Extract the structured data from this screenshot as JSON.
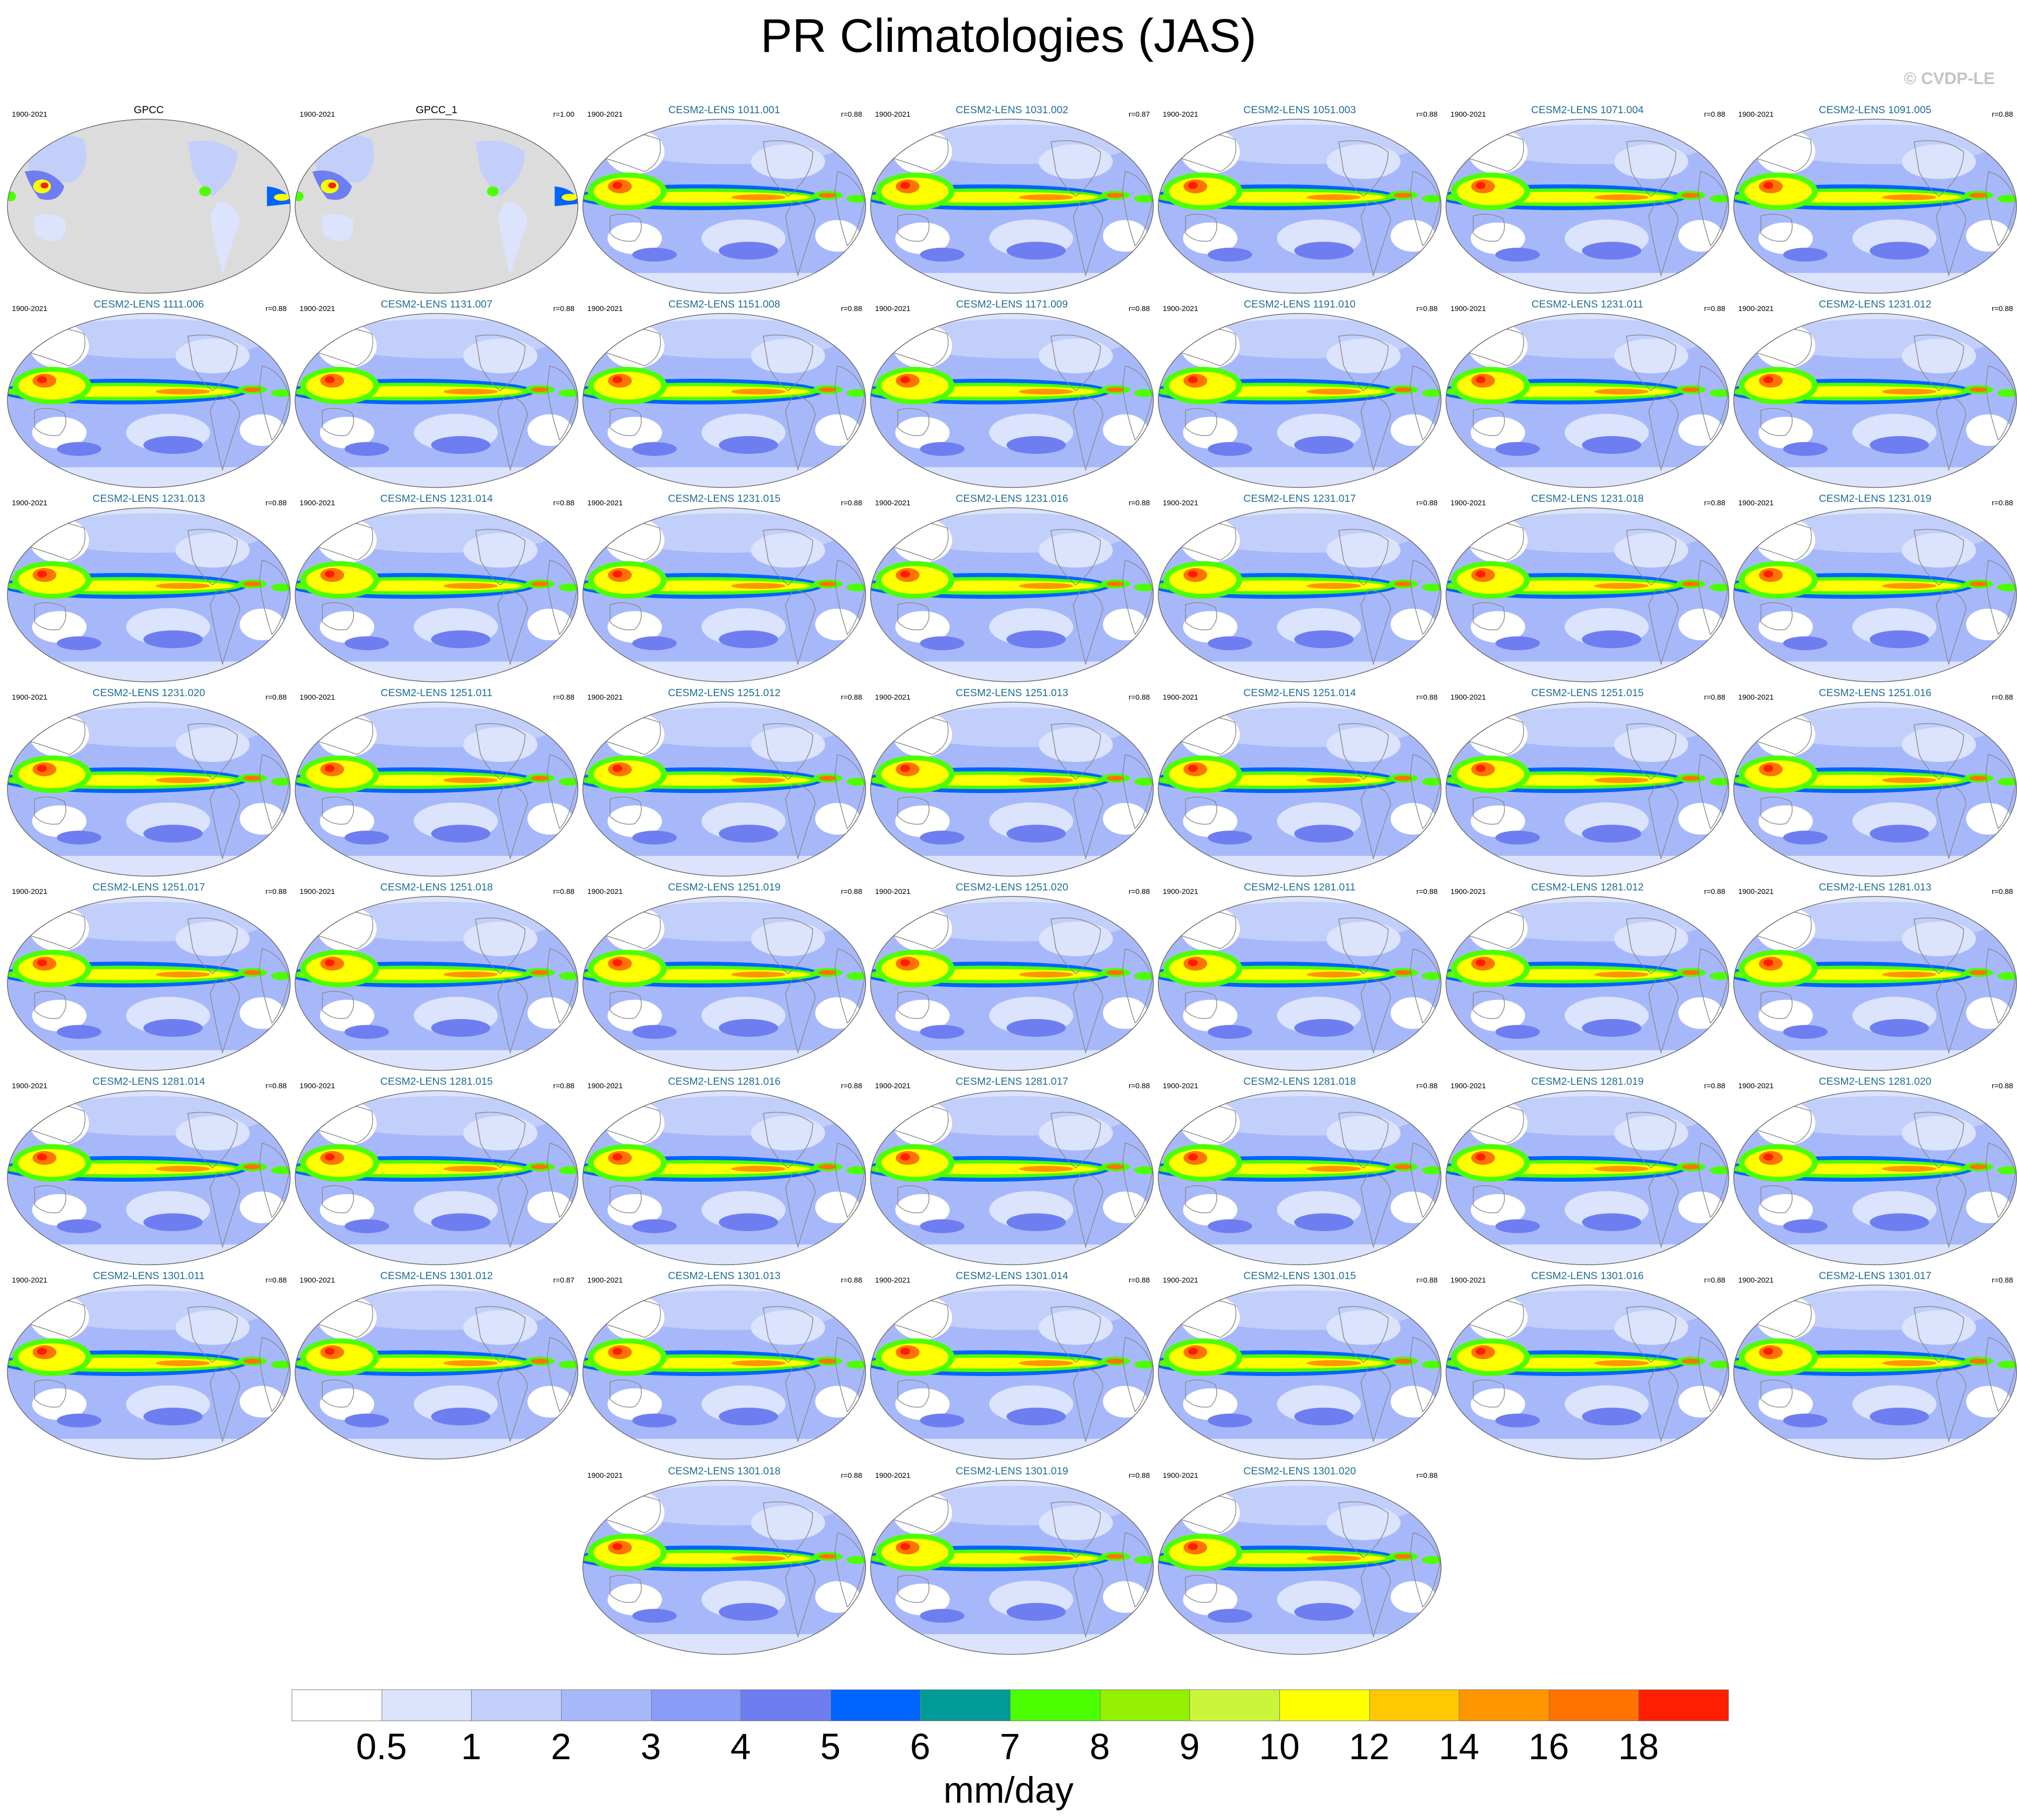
{
  "title": "PR Climatologies (JAS)",
  "watermark": "© CVDP-LE",
  "chart_data": {
    "type": "heatmap",
    "projection": "Robinson (Pacific-centered global maps)",
    "variable": "PR",
    "season": "JAS",
    "units": "mm/day",
    "colorbar": {
      "levels": [
        "0.5",
        "1",
        "2",
        "3",
        "4",
        "5",
        "6",
        "7",
        "8",
        "9",
        "10",
        "12",
        "14",
        "16",
        "18"
      ],
      "colors": [
        "#ffffff",
        "#dbe3fd",
        "#c2cffb",
        "#a7b8fa",
        "#8a9cf6",
        "#6e7ef1",
        "#0064ff",
        "#009a98",
        "#4bff00",
        "#92f000",
        "#cbf53b",
        "#ffff00",
        "#ffc800",
        "#ff9600",
        "#ff7300",
        "#ff1e00"
      ]
    },
    "panels": [
      {
        "title": "GPCC",
        "period": "1900-2021",
        "r": "",
        "kind": "obs"
      },
      {
        "title": "GPCC_1",
        "period": "1900-2021",
        "r": "r=1.00",
        "kind": "obs"
      },
      {
        "title": "CESM2-LENS 1011.001",
        "period": "1900-2021",
        "r": "r=0.88",
        "kind": "model"
      },
      {
        "title": "CESM2-LENS 1031.002",
        "period": "1900-2021",
        "r": "r=0.87",
        "kind": "model"
      },
      {
        "title": "CESM2-LENS 1051.003",
        "period": "1900-2021",
        "r": "r=0.88",
        "kind": "model"
      },
      {
        "title": "CESM2-LENS 1071.004",
        "period": "1900-2021",
        "r": "r=0.88",
        "kind": "model"
      },
      {
        "title": "CESM2-LENS 1091.005",
        "period": "1900-2021",
        "r": "r=0.88",
        "kind": "model"
      },
      {
        "title": "CESM2-LENS 1111.006",
        "period": "1900-2021",
        "r": "r=0.88",
        "kind": "model"
      },
      {
        "title": "CESM2-LENS 1131.007",
        "period": "1900-2021",
        "r": "r=0.88",
        "kind": "model"
      },
      {
        "title": "CESM2-LENS 1151.008",
        "period": "1900-2021",
        "r": "r=0.88",
        "kind": "model"
      },
      {
        "title": "CESM2-LENS 1171.009",
        "period": "1900-2021",
        "r": "r=0.88",
        "kind": "model"
      },
      {
        "title": "CESM2-LENS 1191.010",
        "period": "1900-2021",
        "r": "r=0.88",
        "kind": "model"
      },
      {
        "title": "CESM2-LENS 1231.011",
        "period": "1900-2021",
        "r": "r=0.88",
        "kind": "model"
      },
      {
        "title": "CESM2-LENS 1231.012",
        "period": "1900-2021",
        "r": "r=0.88",
        "kind": "model"
      },
      {
        "title": "CESM2-LENS 1231.013",
        "period": "1900-2021",
        "r": "r=0.88",
        "kind": "model"
      },
      {
        "title": "CESM2-LENS 1231.014",
        "period": "1900-2021",
        "r": "r=0.88",
        "kind": "model"
      },
      {
        "title": "CESM2-LENS 1231.015",
        "period": "1900-2021",
        "r": "r=0.88",
        "kind": "model"
      },
      {
        "title": "CESM2-LENS 1231.016",
        "period": "1900-2021",
        "r": "r=0.88",
        "kind": "model"
      },
      {
        "title": "CESM2-LENS 1231.017",
        "period": "1900-2021",
        "r": "r=0.88",
        "kind": "model"
      },
      {
        "title": "CESM2-LENS 1231.018",
        "period": "1900-2021",
        "r": "r=0.88",
        "kind": "model"
      },
      {
        "title": "CESM2-LENS 1231.019",
        "period": "1900-2021",
        "r": "r=0.88",
        "kind": "model"
      },
      {
        "title": "CESM2-LENS 1231.020",
        "period": "1900-2021",
        "r": "r=0.88",
        "kind": "model"
      },
      {
        "title": "CESM2-LENS 1251.011",
        "period": "1900-2021",
        "r": "r=0.88",
        "kind": "model"
      },
      {
        "title": "CESM2-LENS 1251.012",
        "period": "1900-2021",
        "r": "r=0.88",
        "kind": "model"
      },
      {
        "title": "CESM2-LENS 1251.013",
        "period": "1900-2021",
        "r": "r=0.88",
        "kind": "model"
      },
      {
        "title": "CESM2-LENS 1251.014",
        "period": "1900-2021",
        "r": "r=0.88",
        "kind": "model"
      },
      {
        "title": "CESM2-LENS 1251.015",
        "period": "1900-2021",
        "r": "r=0.88",
        "kind": "model"
      },
      {
        "title": "CESM2-LENS 1251.016",
        "period": "1900-2021",
        "r": "r=0.88",
        "kind": "model"
      },
      {
        "title": "CESM2-LENS 1251.017",
        "period": "1900-2021",
        "r": "r=0.88",
        "kind": "model"
      },
      {
        "title": "CESM2-LENS 1251.018",
        "period": "1900-2021",
        "r": "r=0.88",
        "kind": "model"
      },
      {
        "title": "CESM2-LENS 1251.019",
        "period": "1900-2021",
        "r": "r=0.88",
        "kind": "model"
      },
      {
        "title": "CESM2-LENS 1251.020",
        "period": "1900-2021",
        "r": "r=0.88",
        "kind": "model"
      },
      {
        "title": "CESM2-LENS 1281.011",
        "period": "1900-2021",
        "r": "r=0.88",
        "kind": "model"
      },
      {
        "title": "CESM2-LENS 1281.012",
        "period": "1900-2021",
        "r": "r=0.88",
        "kind": "model"
      },
      {
        "title": "CESM2-LENS 1281.013",
        "period": "1900-2021",
        "r": "r=0.88",
        "kind": "model"
      },
      {
        "title": "CESM2-LENS 1281.014",
        "period": "1900-2021",
        "r": "r=0.88",
        "kind": "model"
      },
      {
        "title": "CESM2-LENS 1281.015",
        "period": "1900-2021",
        "r": "r=0.88",
        "kind": "model"
      },
      {
        "title": "CESM2-LENS 1281.016",
        "period": "1900-2021",
        "r": "r=0.88",
        "kind": "model"
      },
      {
        "title": "CESM2-LENS 1281.017",
        "period": "1900-2021",
        "r": "r=0.88",
        "kind": "model"
      },
      {
        "title": "CESM2-LENS 1281.018",
        "period": "1900-2021",
        "r": "r=0.88",
        "kind": "model"
      },
      {
        "title": "CESM2-LENS 1281.019",
        "period": "1900-2021",
        "r": "r=0.88",
        "kind": "model"
      },
      {
        "title": "CESM2-LENS 1281.020",
        "period": "1900-2021",
        "r": "r=0.88",
        "kind": "model"
      },
      {
        "title": "CESM2-LENS 1301.011",
        "period": "1900-2021",
        "r": "r=0.88",
        "kind": "model"
      },
      {
        "title": "CESM2-LENS 1301.012",
        "period": "1900-2021",
        "r": "r=0.87",
        "kind": "model"
      },
      {
        "title": "CESM2-LENS 1301.013",
        "period": "1900-2021",
        "r": "r=0.88",
        "kind": "model"
      },
      {
        "title": "CESM2-LENS 1301.014",
        "period": "1900-2021",
        "r": "r=0.88",
        "kind": "model"
      },
      {
        "title": "CESM2-LENS 1301.015",
        "period": "1900-2021",
        "r": "r=0.88",
        "kind": "model"
      },
      {
        "title": "CESM2-LENS 1301.016",
        "period": "1900-2021",
        "r": "r=0.88",
        "kind": "model"
      },
      {
        "title": "CESM2-LENS 1301.017",
        "period": "1900-2021",
        "r": "r=0.88",
        "kind": "model"
      },
      {
        "title": "CESM2-LENS 1301.018",
        "period": "1900-2021",
        "r": "r=0.88",
        "kind": "model"
      },
      {
        "title": "CESM2-LENS 1301.019",
        "period": "1900-2021",
        "r": "r=0.88",
        "kind": "model"
      },
      {
        "title": "CESM2-LENS 1301.020",
        "period": "1900-2021",
        "r": "r=0.88",
        "kind": "model"
      }
    ]
  }
}
